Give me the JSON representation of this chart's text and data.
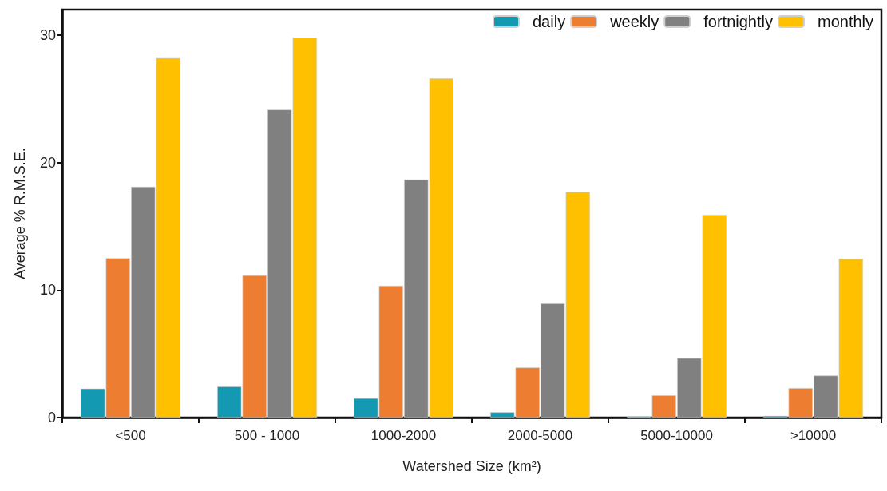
{
  "chart_data": {
    "type": "bar",
    "xlabel": "Watershed Size (km²)",
    "ylabel": "Average % R.M.S.E.",
    "categories": [
      "<500",
      "500 - 1000",
      "1000-2000",
      "2000-5000",
      "5000-10000",
      ">10000"
    ],
    "series": [
      {
        "name": "daily",
        "color": "#1399b2",
        "values": [
          2.27,
          2.43,
          1.51,
          0.42,
          0.07,
          0.13
        ]
      },
      {
        "name": "weekly",
        "color": "#ed7d31",
        "values": [
          12.5,
          11.15,
          10.33,
          3.92,
          1.74,
          2.31
        ]
      },
      {
        "name": "fortnightly",
        "color": "#808080",
        "values": [
          18.1,
          24.15,
          18.67,
          8.95,
          4.65,
          3.29
        ]
      },
      {
        "name": "monthly",
        "color": "#ffc000",
        "values": [
          28.2,
          29.8,
          26.6,
          17.7,
          15.9,
          12.46
        ]
      }
    ],
    "ylim": [
      0,
      32
    ],
    "yticks": [
      0,
      10,
      20,
      30
    ],
    "grid": false,
    "legend": "top right"
  }
}
